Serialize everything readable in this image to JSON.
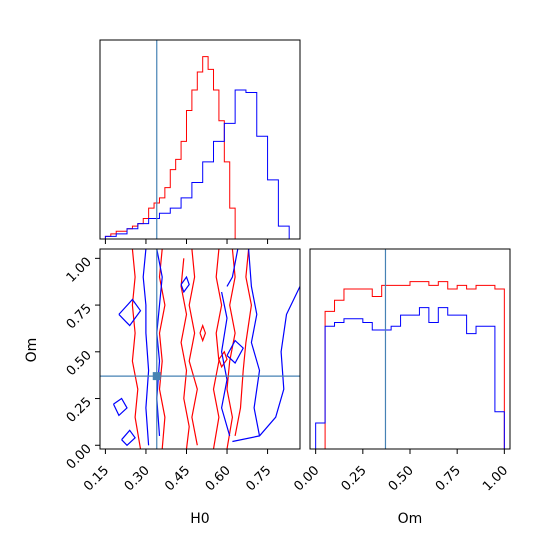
{
  "chart_data": {
    "type": "corner",
    "parameters": [
      "H0",
      "Om"
    ],
    "truth": {
      "H0": 0.34,
      "Om": 0.37
    },
    "colors": {
      "series_a": "#ff0000",
      "series_b": "#0000ff",
      "truth": "#4682b4"
    },
    "series": [
      {
        "color": "red",
        "hist_H0": {
          "x_range": [
            0.13,
            0.87
          ],
          "bin_edges": [
            0.13,
            0.15,
            0.17,
            0.19,
            0.21,
            0.23,
            0.25,
            0.27,
            0.29,
            0.31,
            0.33,
            0.35,
            0.37,
            0.39,
            0.41,
            0.43,
            0.45,
            0.47,
            0.49,
            0.51,
            0.53,
            0.55,
            0.57,
            0.59,
            0.61,
            0.63,
            0.65
          ],
          "counts": [
            0,
            1,
            2,
            3,
            3,
            4,
            5,
            6,
            8,
            12,
            14,
            16,
            20,
            27,
            31,
            38,
            50,
            58,
            65,
            71,
            66,
            58,
            46,
            30,
            12,
            0
          ]
        },
        "hist_Om": {
          "bin_edges": [
            0.0,
            0.05,
            0.1,
            0.15,
            0.2,
            0.25,
            0.3,
            0.35,
            0.4,
            0.45,
            0.5,
            0.55,
            0.6,
            0.65,
            0.7,
            0.75,
            0.8,
            0.85,
            0.9,
            0.95,
            1.0
          ],
          "counts": [
            0,
            0.74,
            0.8,
            0.86,
            0.86,
            0.86,
            0.82,
            0.88,
            0.88,
            0.88,
            0.9,
            0.9,
            0.88,
            0.9,
            0.86,
            0.88,
            0.86,
            0.88,
            0.88,
            0.86
          ]
        }
      },
      {
        "color": "blue",
        "hist_H0": {
          "bin_edges": [
            0.15,
            0.19,
            0.23,
            0.27,
            0.31,
            0.35,
            0.39,
            0.43,
            0.47,
            0.51,
            0.55,
            0.59,
            0.63,
            0.67,
            0.71,
            0.75,
            0.79,
            0.83,
            0.87
          ],
          "counts": [
            1,
            2,
            4,
            6,
            8,
            10,
            12,
            16,
            22,
            30,
            38,
            45,
            58,
            57,
            40,
            23,
            5,
            0
          ]
        },
        "hist_Om": {
          "bin_edges": [
            0.0,
            0.05,
            0.1,
            0.15,
            0.2,
            0.25,
            0.3,
            0.35,
            0.4,
            0.45,
            0.5,
            0.55,
            0.6,
            0.65,
            0.7,
            0.75,
            0.8,
            0.85,
            0.9,
            0.95,
            1.0
          ],
          "counts": [
            0.14,
            0.66,
            0.68,
            0.7,
            0.7,
            0.68,
            0.64,
            0.64,
            0.66,
            0.72,
            0.72,
            0.76,
            0.68,
            0.76,
            0.72,
            0.72,
            0.62,
            0.66,
            0.66,
            0.2
          ]
        }
      }
    ],
    "xlim_H0": [
      0.13,
      0.87
    ],
    "ylim_Om": [
      -0.02,
      1.05
    ],
    "ticks_H0": [
      "0.15",
      "0.30",
      "0.45",
      "0.60",
      "0.75"
    ],
    "ticks_Om": [
      "0.00",
      "0.25",
      "0.50",
      "0.75",
      "1.00"
    ],
    "xlabel_H0": "H0",
    "xlabel_Om": "Om",
    "ylabel_Om": "Om"
  }
}
